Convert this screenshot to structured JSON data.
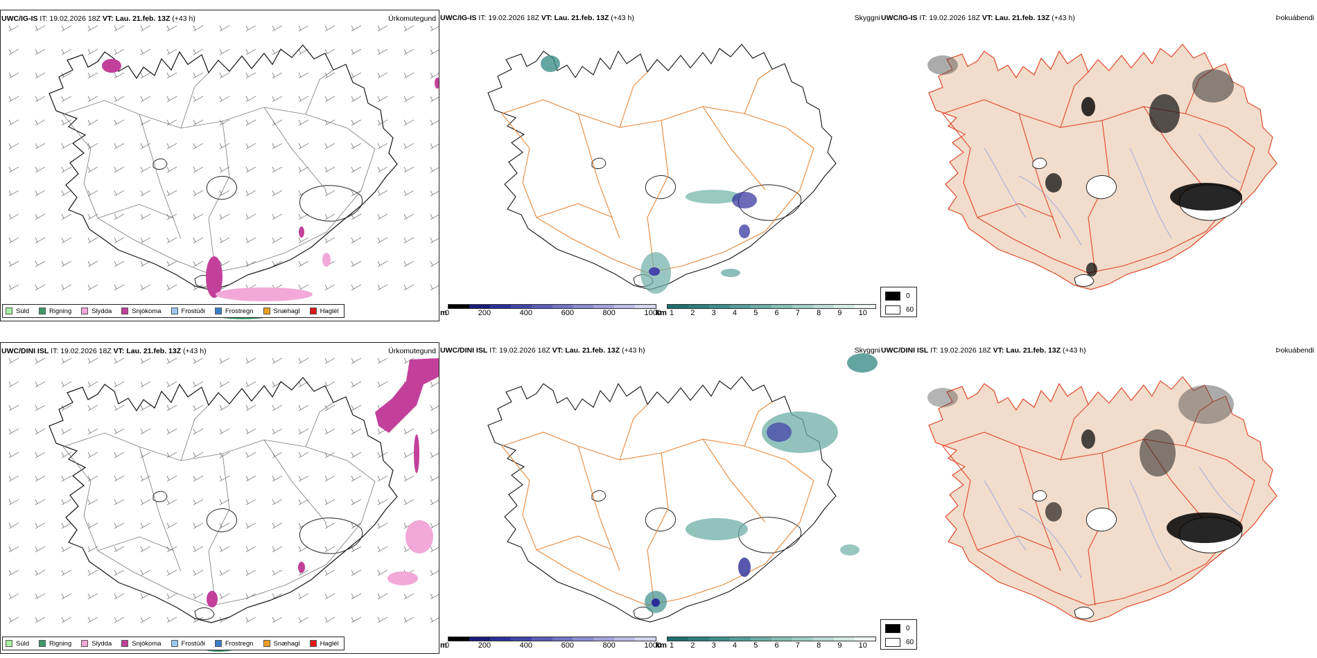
{
  "rows": [
    {
      "model_header": {
        "model": "UWC/IG-IS",
        "it": "IT: 19.02.2026 18Z",
        "vt_label": "VT:",
        "vt": "Lau. 21.feb. 13Z",
        "lead": "(+43 h)"
      },
      "precip_title": "Úrkomutegund",
      "cloud_title": "Skyggni",
      "fog_title": "Þokuábendi"
    },
    {
      "model_header": {
        "model": "UWC/DINI ISL",
        "it": "IT: 19.02.2026 18Z",
        "vt_label": "VT:",
        "vt": "Lau. 21.feb. 13Z",
        "lead": "(+43 h)"
      },
      "precip_title": "Úrkomutegund",
      "cloud_title": "Skyggni",
      "fog_title": "Þokuábendi"
    }
  ],
  "precip_legend": [
    {
      "label": "Súld",
      "color": "#a6f0a0"
    },
    {
      "label": "Rigning",
      "color": "#3c9a6a"
    },
    {
      "label": "Slydda",
      "color": "#f2a8d8"
    },
    {
      "label": "Snjókoma",
      "color": "#c2409a"
    },
    {
      "label": "Frostúði",
      "color": "#9cc8f0"
    },
    {
      "label": "Frostregn",
      "color": "#3a7fc8"
    },
    {
      "label": "Snæhagl",
      "color": "#f0a020"
    },
    {
      "label": "Haglél",
      "color": "#e01818"
    }
  ],
  "cloudbase_scale": {
    "unit": "m",
    "ticks": [
      "0",
      "200",
      "400",
      "600",
      "800",
      "1000"
    ],
    "colors": [
      "#000000",
      "#1b1b7a",
      "#2d2d9a",
      "#4444aa",
      "#5c5cb8",
      "#7474c4",
      "#8c8cd0",
      "#a4a4da",
      "#bcbce6",
      "#d4d4f0"
    ]
  },
  "visibility_scale": {
    "unit": "km",
    "ticks": [
      "1",
      "2",
      "3",
      "4",
      "5",
      "6",
      "7",
      "8",
      "9",
      "10"
    ],
    "colors": [
      "#1e6e6e",
      "#2e7e7c",
      "#3f8e8a",
      "#569e98",
      "#6eaea6",
      "#86beb4",
      "#a0cec4",
      "#badcd4",
      "#d4eae4",
      "#eef6f4"
    ]
  },
  "fog_key": {
    "rows": [
      {
        "label": "0",
        "color": "#000000"
      },
      {
        "label": "60",
        "color": "#ffffff"
      }
    ]
  },
  "map_colors": {
    "coast": "#111111",
    "roads_orange": "#e8873a",
    "roads_red": "#e0482a",
    "land_fog": "#f2dccb",
    "rivers": "#8aa4e6"
  }
}
